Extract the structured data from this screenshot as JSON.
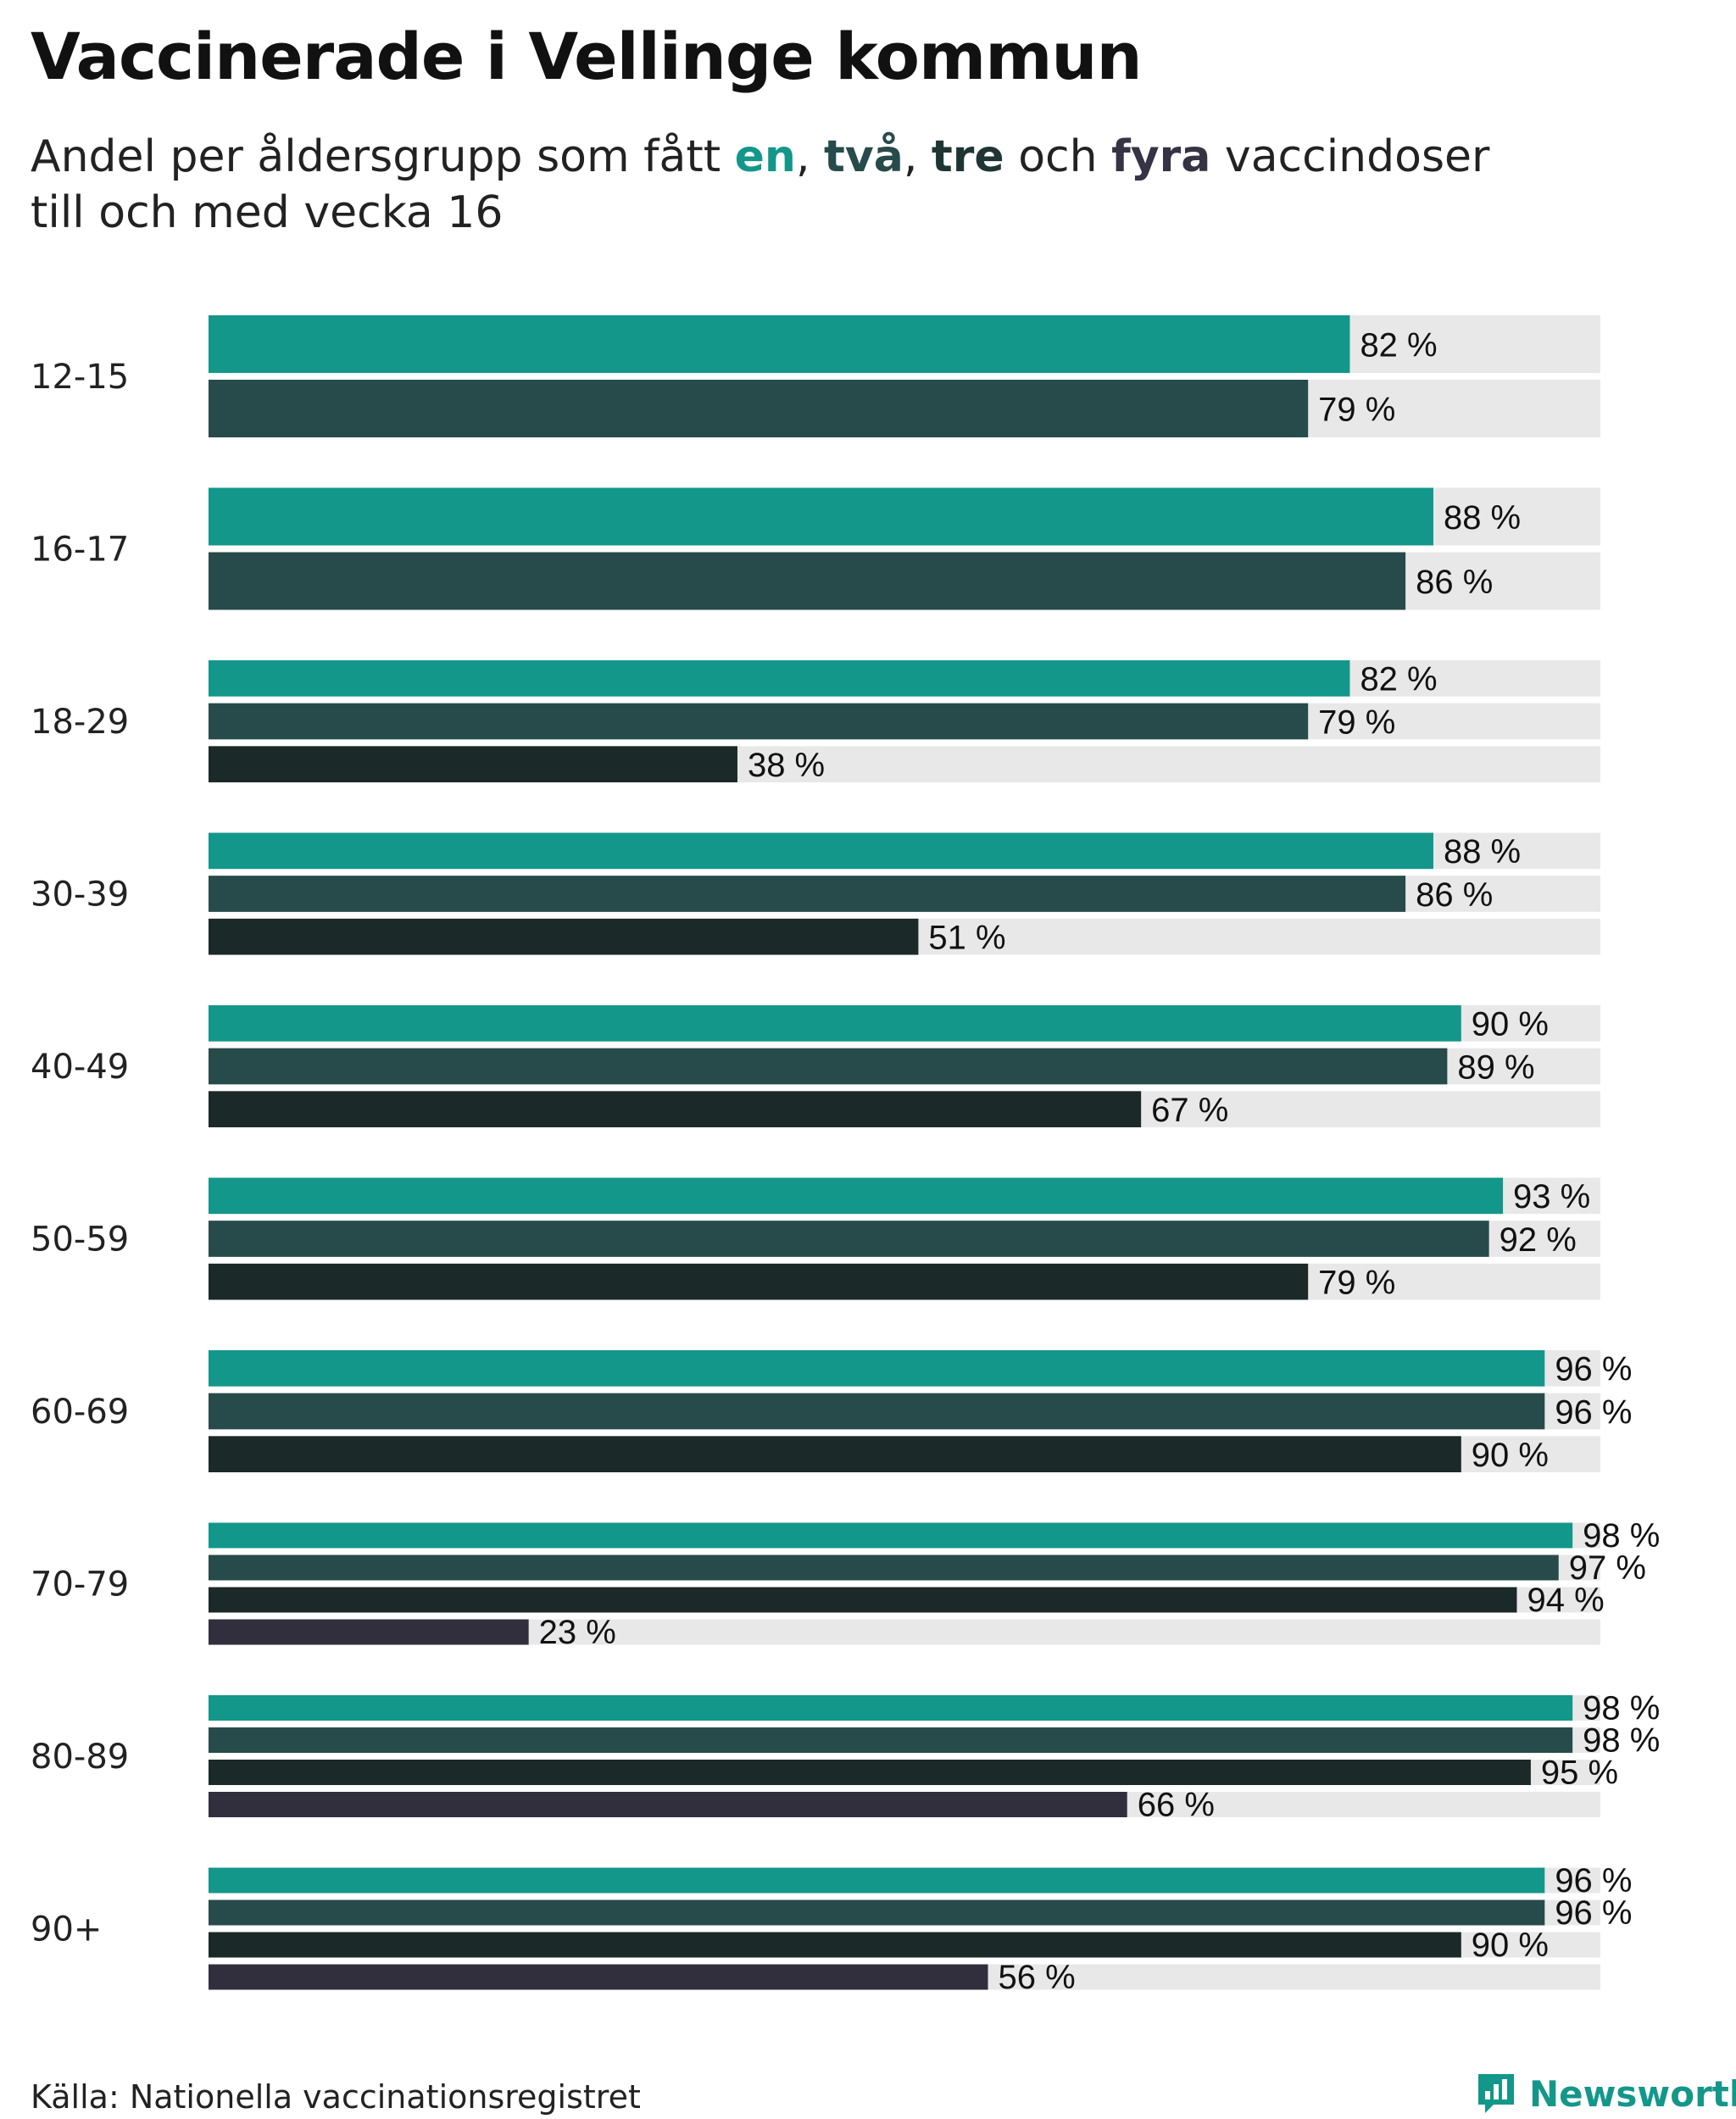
{
  "title": "Vaccinerade i Vellinge kommun",
  "subtitle": {
    "prefix": "Andel per åldersgrupp som fått ",
    "w_en": "en",
    "sep1": ", ",
    "w_tva": "två",
    "sep2": ", ",
    "w_tre": "tre",
    "mid": " och ",
    "w_fyra": "fyra",
    "suffix": " vaccindoser till och med vecka 16"
  },
  "source": "Källa: Nationella vaccinationsregistret",
  "brand": {
    "name": "Newsworthy",
    "icon": "newsworthy-logo-icon"
  },
  "colors": {
    "en": "#13978a",
    "tva": "#274b4a",
    "tre": "#1b2928",
    "fyra": "#312f3e",
    "track": "#e8e8e8"
  },
  "chart_data": {
    "type": "bar",
    "orientation": "horizontal",
    "xlim": [
      0,
      100
    ],
    "unit_suffix": " %",
    "categories": [
      "12-15",
      "16-17",
      "18-29",
      "30-39",
      "40-49",
      "50-59",
      "60-69",
      "70-79",
      "80-89",
      "90+"
    ],
    "series": [
      {
        "name": "en",
        "values": [
          82,
          88,
          82,
          88,
          90,
          93,
          96,
          98,
          98,
          96
        ]
      },
      {
        "name": "två",
        "values": [
          79,
          86,
          79,
          86,
          89,
          92,
          96,
          97,
          98,
          96
        ]
      },
      {
        "name": "tre",
        "values": [
          null,
          null,
          38,
          51,
          67,
          79,
          90,
          94,
          95,
          90
        ]
      },
      {
        "name": "fyra",
        "values": [
          null,
          null,
          null,
          null,
          null,
          null,
          null,
          23,
          66,
          56
        ]
      }
    ],
    "value_labels": [
      [
        "82 %",
        "79 %"
      ],
      [
        "88 %",
        "86 %"
      ],
      [
        "82 %",
        "79 %",
        "38 %"
      ],
      [
        "88 %",
        "86 %",
        "51 %"
      ],
      [
        "90 %",
        "89 %",
        "67 %"
      ],
      [
        "93 %",
        "92 %",
        "79 %"
      ],
      [
        "96 %",
        "96 %",
        "90 %"
      ],
      [
        "98 %",
        "97 %",
        "94 %",
        "23 %"
      ],
      [
        "98 %",
        "98 %",
        "95 %",
        "66 %"
      ],
      [
        "96 %",
        "96 %",
        "90 %",
        "56 %"
      ]
    ],
    "grid": false,
    "legend": "in subtitle"
  }
}
